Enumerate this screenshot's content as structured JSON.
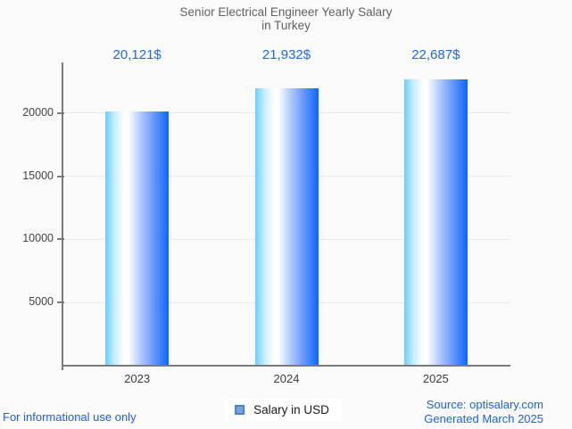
{
  "page": {
    "background": "#fafafa",
    "footer_left": "For informational use only",
    "footer_right_line1": "Source: optisalary.com",
    "footer_right_line2": "Generated March 2025"
  },
  "chart_data": {
    "type": "bar",
    "title_line1": "Senior Electrical Engineer Yearly Salary",
    "title_line2": "in Turkey",
    "categories": [
      "2023",
      "2024",
      "2025"
    ],
    "values": [
      20121,
      21932,
      22687
    ],
    "value_labels": [
      "20,121$",
      "21,932$",
      "22,687$"
    ],
    "yticks": [
      5000,
      10000,
      15000,
      20000
    ],
    "ylim": [
      0,
      24000
    ],
    "grid": true,
    "legend_position": "bottom",
    "legend": [
      {
        "label": "Salary in USD",
        "swatch_fill": "#6fa8dc",
        "swatch_border": "#4a7fd0"
      }
    ],
    "colors": {
      "bar_gradient_left": "#6bcffb",
      "bar_gradient_light": "#c9eefe",
      "bar_gradient_mid": "#ffffff",
      "bar_gradient_soft": "#b3ccfd",
      "bar_gradient_deep": "#6d9bfb",
      "bar_gradient_right": "#0d66fd",
      "value_label": "#2465e6",
      "title": "#616161",
      "axis": "#7a7a7a",
      "gridline": "#e9e9e9",
      "tick_label": "#444444",
      "footer_blue": "#1f5fe0"
    }
  }
}
